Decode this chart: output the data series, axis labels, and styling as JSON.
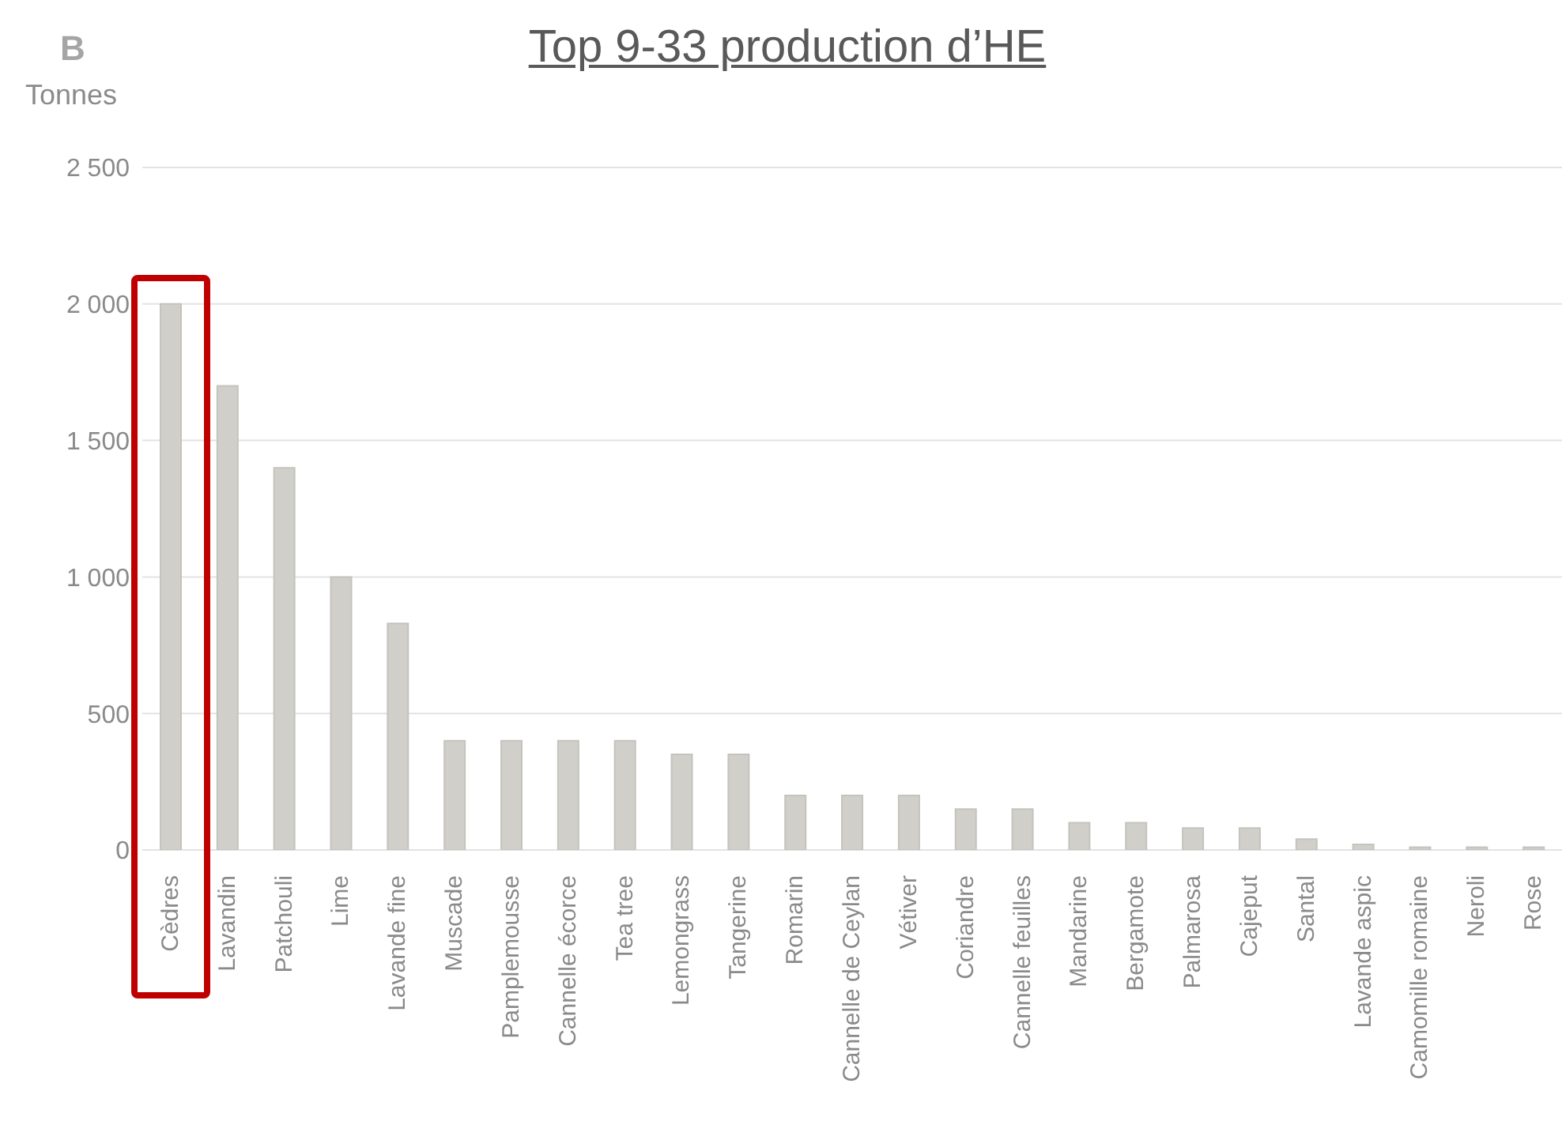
{
  "chart_data": {
    "type": "bar",
    "title": "Top 9-33 production d’HE",
    "ylabel": "Tonnes",
    "annotations": [
      "B"
    ],
    "categories": [
      "Cèdres",
      "Lavandin",
      "Patchouli",
      "Lime",
      "Lavande fine",
      "Muscade",
      "Pamplemousse",
      "Cannelle écorce",
      "Tea tree",
      "Lemongrass",
      "Tangerine",
      "Romarin",
      "Cannelle de Ceylan",
      "Vétiver",
      "Coriandre",
      "Cannelle feuilles",
      "Mandarine",
      "Bergamote",
      "Palmarosa",
      "Cajeput",
      "Santal",
      "Lavande aspic",
      "Camomille romaine",
      "Neroli",
      "Rose"
    ],
    "values": [
      2000,
      1700,
      1400,
      1000,
      830,
      400,
      400,
      400,
      400,
      350,
      350,
      200,
      200,
      200,
      150,
      150,
      100,
      100,
      80,
      80,
      40,
      20,
      10,
      10,
      10
    ],
    "color": "#d0cfca",
    "ylim": [
      0,
      2500
    ],
    "yticks": [
      0,
      500,
      {
        "value": 1000,
        "label": "1 000"
      },
      {
        "value": 1500,
        "label": "1 500"
      },
      {
        "value": 2000,
        "label": "2 000"
      },
      {
        "value": 2500,
        "label": "2 500"
      }
    ],
    "grid": "y",
    "legend": false
  }
}
